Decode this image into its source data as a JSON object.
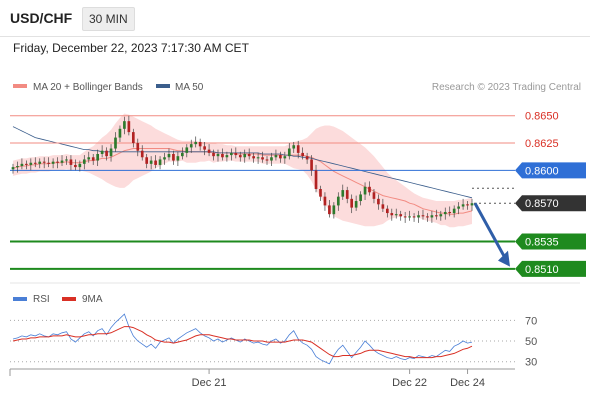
{
  "header": {
    "symbol": "USD/CHF",
    "timeframe": "30 MIN",
    "datetime": "Friday, December 22, 2023 7:17:30 AM CET"
  },
  "legend": {
    "items": [
      {
        "label": "MA 20 + Bollinger Bands",
        "color": "#f28b82"
      },
      {
        "label": "MA 50",
        "color": "#3b5e8c"
      }
    ],
    "credit": "Research © 2023 Trading Central"
  },
  "chart_data": [
    {
      "type": "candlestick",
      "title": "USD/CHF",
      "ylim": [
        0.8498,
        0.8668
      ],
      "levels": [
        {
          "value": 0.865,
          "label": "0.8650",
          "kind": "resistance",
          "color": "#f28b82"
        },
        {
          "value": 0.8625,
          "label": "0.8625",
          "kind": "resistance",
          "color": "#f28b82"
        },
        {
          "value": 0.86,
          "label": "0.8600",
          "kind": "pivot",
          "color": "#2f6fd6"
        },
        {
          "value": 0.857,
          "label": "0.8570",
          "kind": "current",
          "color": "#333333"
        },
        {
          "value": 0.8535,
          "label": "0.8535",
          "kind": "support",
          "color": "#1e8a1e"
        },
        {
          "value": 0.851,
          "label": "0.8510",
          "kind": "support",
          "color": "#1e8a1e"
        }
      ],
      "forecast": {
        "from": 0.857,
        "to": 0.8512,
        "color": "#2f5ea8"
      },
      "close": [
        0.8603,
        0.8604,
        0.8606,
        0.8605,
        0.8607,
        0.8606,
        0.8608,
        0.8607,
        0.8606,
        0.8608,
        0.8607,
        0.8609,
        0.861,
        0.8605,
        0.8603,
        0.8606,
        0.861,
        0.8612,
        0.8609,
        0.8615,
        0.8618,
        0.8613,
        0.862,
        0.863,
        0.8638,
        0.8645,
        0.8635,
        0.8625,
        0.8618,
        0.8612,
        0.8606,
        0.8609,
        0.8605,
        0.861,
        0.8612,
        0.8615,
        0.8609,
        0.8613,
        0.8616,
        0.8621,
        0.8624,
        0.8626,
        0.8622,
        0.8619,
        0.8616,
        0.8613,
        0.8615,
        0.8612,
        0.8614,
        0.8616,
        0.8614,
        0.8612,
        0.8615,
        0.8613,
        0.8611,
        0.8612,
        0.861,
        0.8609,
        0.8612,
        0.8614,
        0.8611,
        0.8613,
        0.862,
        0.8623,
        0.8616,
        0.8613,
        0.861,
        0.86,
        0.8583,
        0.8576,
        0.8568,
        0.856,
        0.8568,
        0.8576,
        0.8582,
        0.8574,
        0.8566,
        0.8572,
        0.8578,
        0.8585,
        0.858,
        0.8574,
        0.8569,
        0.8565,
        0.8561,
        0.8559,
        0.856,
        0.8558,
        0.8557,
        0.8558,
        0.8557,
        0.8559,
        0.8558,
        0.8557,
        0.8559,
        0.8558,
        0.856,
        0.8562,
        0.8561,
        0.8565,
        0.8567,
        0.8569,
        0.8568,
        0.857
      ],
      "ma20": [
        0.8602,
        0.8603,
        0.8604,
        0.8604,
        0.8605,
        0.8605,
        0.8606,
        0.8606,
        0.8606,
        0.8607,
        0.8607,
        0.8607,
        0.8608,
        0.8607,
        0.8607,
        0.8607,
        0.8608,
        0.8609,
        0.8609,
        0.861,
        0.8611,
        0.8611,
        0.8612,
        0.8614,
        0.8616,
        0.8618,
        0.8619,
        0.862,
        0.862,
        0.862,
        0.862,
        0.862,
        0.862,
        0.862,
        0.862,
        0.862,
        0.8619,
        0.8618,
        0.8618,
        0.8617,
        0.8617,
        0.8617,
        0.8617,
        0.8617,
        0.8617,
        0.8616,
        0.8616,
        0.8616,
        0.8616,
        0.8616,
        0.8615,
        0.8615,
        0.8615,
        0.8615,
        0.8615,
        0.8615,
        0.8614,
        0.8614,
        0.8614,
        0.8614,
        0.8614,
        0.8614,
        0.8614,
        0.8614,
        0.8614,
        0.8614,
        0.8613,
        0.8612,
        0.861,
        0.8608,
        0.8605,
        0.8602,
        0.8599,
        0.8597,
        0.8595,
        0.8593,
        0.8591,
        0.8589,
        0.8587,
        0.8585,
        0.8583,
        0.8581,
        0.8579,
        0.8577,
        0.8576,
        0.8575,
        0.8574,
        0.8573,
        0.8572,
        0.857,
        0.8569,
        0.8567,
        0.8565,
        0.8564,
        0.8563,
        0.8562,
        0.8561,
        0.8561,
        0.856,
        0.856,
        0.8561,
        0.8561,
        0.8562,
        0.8563
      ],
      "bb_upper": [
        0.8609,
        0.861,
        0.8611,
        0.8611,
        0.8612,
        0.8612,
        0.8613,
        0.8613,
        0.8613,
        0.8614,
        0.8614,
        0.8614,
        0.8615,
        0.8614,
        0.8614,
        0.8614,
        0.8617,
        0.862,
        0.8622,
        0.8626,
        0.863,
        0.8633,
        0.8637,
        0.8643,
        0.8648,
        0.8652,
        0.8651,
        0.8649,
        0.8647,
        0.8645,
        0.8643,
        0.8641,
        0.8638,
        0.8636,
        0.8634,
        0.8632,
        0.863,
        0.8628,
        0.8627,
        0.8627,
        0.8627,
        0.8627,
        0.8626,
        0.8626,
        0.8625,
        0.8625,
        0.8624,
        0.8624,
        0.8623,
        0.8623,
        0.8622,
        0.8622,
        0.8622,
        0.8622,
        0.8622,
        0.8622,
        0.8622,
        0.8622,
        0.8622,
        0.8622,
        0.8622,
        0.8622,
        0.8624,
        0.8626,
        0.8627,
        0.8628,
        0.863,
        0.8634,
        0.8638,
        0.864,
        0.8641,
        0.8641,
        0.864,
        0.8638,
        0.8636,
        0.8633,
        0.863,
        0.8627,
        0.8624,
        0.8621,
        0.8617,
        0.8613,
        0.8608,
        0.8603,
        0.8598,
        0.8594,
        0.8591,
        0.8588,
        0.8585,
        0.8582,
        0.8579,
        0.8577,
        0.8575,
        0.8574,
        0.8573,
        0.8572,
        0.8572,
        0.8572,
        0.8572,
        0.8572,
        0.8573,
        0.8573,
        0.8574,
        0.8575
      ],
      "bb_lower": [
        0.8595,
        0.8596,
        0.8597,
        0.8597,
        0.8598,
        0.8598,
        0.8599,
        0.8599,
        0.8599,
        0.86,
        0.86,
        0.86,
        0.8601,
        0.86,
        0.86,
        0.86,
        0.8599,
        0.8598,
        0.8596,
        0.8594,
        0.8592,
        0.8589,
        0.8587,
        0.8585,
        0.8584,
        0.8584,
        0.8587,
        0.8591,
        0.8593,
        0.8595,
        0.8597,
        0.8599,
        0.8602,
        0.8604,
        0.8606,
        0.8608,
        0.8608,
        0.8608,
        0.8609,
        0.8607,
        0.8607,
        0.8607,
        0.8608,
        0.8608,
        0.8609,
        0.8607,
        0.8608,
        0.8608,
        0.8609,
        0.8609,
        0.8608,
        0.8608,
        0.8608,
        0.8608,
        0.8608,
        0.8608,
        0.8606,
        0.8606,
        0.8606,
        0.8606,
        0.8606,
        0.8606,
        0.8604,
        0.8602,
        0.8601,
        0.86,
        0.8596,
        0.859,
        0.8582,
        0.8576,
        0.8569,
        0.8563,
        0.8558,
        0.8556,
        0.8554,
        0.8553,
        0.8552,
        0.8551,
        0.855,
        0.8549,
        0.8549,
        0.8549,
        0.855,
        0.8551,
        0.8554,
        0.8556,
        0.8557,
        0.8558,
        0.8559,
        0.8558,
        0.8559,
        0.8557,
        0.8555,
        0.8554,
        0.8553,
        0.8552,
        0.855,
        0.855,
        0.8548,
        0.8548,
        0.8549,
        0.8549,
        0.855,
        0.8551
      ],
      "ma50": [
        0.864,
        0.8638,
        0.8636,
        0.8634,
        0.8632,
        0.863,
        0.8629,
        0.8628,
        0.8627,
        0.8626,
        0.8625,
        0.8624,
        0.8623,
        0.8622,
        0.8621,
        0.862,
        0.8619,
        0.8619,
        0.8618,
        0.8618,
        0.8617,
        0.8617,
        0.8617,
        0.8617,
        0.8617,
        0.8617,
        0.8617,
        0.8617,
        0.8617,
        0.8617,
        0.8617,
        0.8617,
        0.8617,
        0.8617,
        0.8617,
        0.8617,
        0.8617,
        0.8617,
        0.8617,
        0.8617,
        0.8617,
        0.8617,
        0.8617,
        0.8617,
        0.8617,
        0.8617,
        0.8616,
        0.8616,
        0.8616,
        0.8616,
        0.8616,
        0.8616,
        0.8616,
        0.8616,
        0.8616,
        0.8616,
        0.8615,
        0.8615,
        0.8615,
        0.8615,
        0.8615,
        0.8614,
        0.8614,
        0.8613,
        0.8613,
        0.8612,
        0.8612,
        0.8611,
        0.861,
        0.8609,
        0.8608,
        0.8607,
        0.8606,
        0.8605,
        0.8604,
        0.8603,
        0.8602,
        0.8601,
        0.86,
        0.8599,
        0.8598,
        0.8597,
        0.8596,
        0.8595,
        0.8594,
        0.8593,
        0.8592,
        0.8591,
        0.859,
        0.8589,
        0.8588,
        0.8587,
        0.8586,
        0.8585,
        0.8584,
        0.8583,
        0.8582,
        0.8581,
        0.858,
        0.8579,
        0.8578,
        0.8577,
        0.8576,
        0.8575
      ]
    },
    {
      "type": "line",
      "legend": [
        {
          "name": "RSI",
          "color": "#4a7fd6"
        },
        {
          "name": "9MA",
          "color": "#d93025"
        }
      ],
      "ylim": [
        22,
        80
      ],
      "yticks": [
        {
          "value": 70,
          "label": "70"
        },
        {
          "value": 50,
          "label": "50"
        },
        {
          "value": 30,
          "label": "30"
        }
      ],
      "x_labels": [
        {
          "index": 44,
          "label": "Dec 21"
        },
        {
          "index": 89,
          "label": "Dec 22"
        },
        {
          "index": 102,
          "label": "Dec 24"
        }
      ],
      "series": [
        {
          "name": "RSI",
          "values": [
            52,
            53,
            55,
            54,
            56,
            55,
            57,
            55,
            54,
            57,
            56,
            58,
            59,
            52,
            49,
            53,
            57,
            59,
            55,
            60,
            62,
            56,
            63,
            68,
            72,
            76,
            64,
            55,
            50,
            47,
            44,
            47,
            43,
            49,
            51,
            53,
            48,
            52,
            55,
            58,
            60,
            62,
            58,
            55,
            53,
            50,
            52,
            49,
            51,
            53,
            51,
            49,
            52,
            50,
            48,
            49,
            47,
            46,
            50,
            52,
            48,
            50,
            56,
            60,
            52,
            48,
            46,
            42,
            35,
            32,
            30,
            28,
            36,
            42,
            46,
            40,
            34,
            39,
            44,
            50,
            46,
            41,
            38,
            36,
            34,
            33,
            35,
            33,
            32,
            34,
            33,
            36,
            35,
            34,
            36,
            35,
            38,
            41,
            40,
            45,
            47,
            50,
            48,
            49
          ]
        },
        {
          "name": "9MA",
          "values": [
            50,
            51,
            52,
            52,
            53,
            53,
            54,
            54,
            54,
            55,
            55,
            55,
            56,
            55,
            54,
            54,
            55,
            56,
            56,
            57,
            57,
            57,
            58,
            60,
            62,
            64,
            64,
            63,
            61,
            59,
            56,
            54,
            51,
            50,
            49,
            49,
            48,
            49,
            50,
            51,
            53,
            55,
            56,
            56,
            56,
            55,
            54,
            53,
            52,
            52,
            51,
            51,
            51,
            51,
            50,
            50,
            50,
            49,
            49,
            49,
            49,
            49,
            50,
            51,
            51,
            51,
            50,
            49,
            46,
            43,
            40,
            37,
            35,
            35,
            36,
            36,
            36,
            37,
            38,
            40,
            41,
            41,
            41,
            40,
            39,
            38,
            37,
            36,
            35,
            35,
            34,
            34,
            34,
            34,
            34,
            35,
            35,
            36,
            37,
            38,
            40,
            42,
            43,
            45
          ]
        }
      ]
    }
  ]
}
